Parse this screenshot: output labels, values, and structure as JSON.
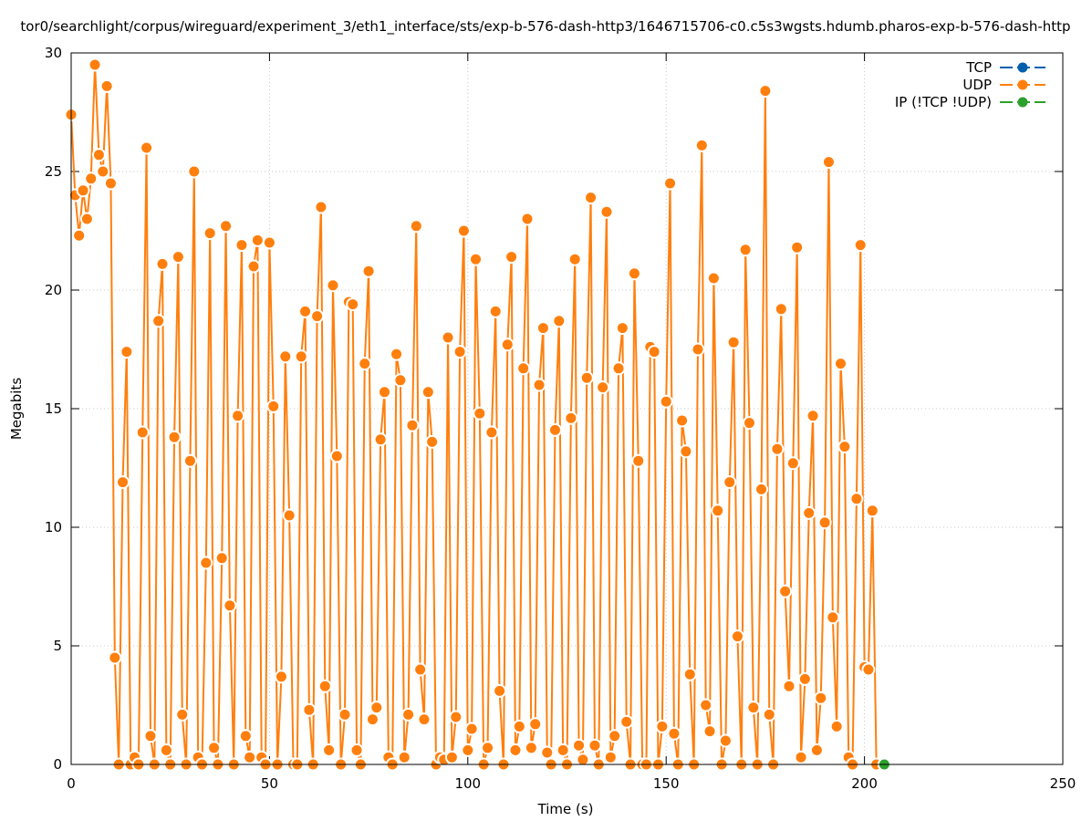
{
  "chart_data": {
    "type": "line",
    "title": "tor0/searchlight/corpus/wireguard/experiment_3/eth1_interface/sts/exp-b-576-dash-http3/1646715706-c0.c5s3wgsts.hdumb.pharos-exp-b-576-dash-http",
    "xlabel": "Time (s)",
    "ylabel": "Megabits",
    "xlim": [
      0,
      250
    ],
    "ylim": [
      0,
      30
    ],
    "xticks": [
      "0",
      "50",
      "100",
      "150",
      "200",
      "250"
    ],
    "yticks": [
      "0",
      "5",
      "10",
      "15",
      "20",
      "25",
      "30"
    ],
    "grid": true,
    "legend_position": "top-right",
    "series": [
      {
        "name": "TCP",
        "color": "#0060ad",
        "points": []
      },
      {
        "name": "UDP",
        "color": "#ff7f0e",
        "points": [
          [
            0,
            27.4
          ],
          [
            1,
            24.0
          ],
          [
            2,
            22.3
          ],
          [
            3,
            24.2
          ],
          [
            4,
            23.0
          ],
          [
            5,
            24.7
          ],
          [
            6,
            29.5
          ],
          [
            7,
            25.7
          ],
          [
            8,
            25.0
          ],
          [
            9,
            28.6
          ],
          [
            10,
            24.5
          ],
          [
            11,
            4.5
          ],
          [
            12,
            0
          ],
          [
            13,
            11.9
          ],
          [
            14,
            17.4
          ],
          [
            15,
            0
          ],
          [
            16,
            0.3
          ],
          [
            17,
            0
          ],
          [
            18,
            14.0
          ],
          [
            19,
            26.0
          ],
          [
            20,
            1.2
          ],
          [
            21,
            0
          ],
          [
            22,
            18.7
          ],
          [
            23,
            21.1
          ],
          [
            24,
            0.6
          ],
          [
            25,
            0
          ],
          [
            26,
            13.8
          ],
          [
            27,
            21.4
          ],
          [
            28,
            2.1
          ],
          [
            29,
            0
          ],
          [
            30,
            12.8
          ],
          [
            31,
            25.0
          ],
          [
            32,
            0.3
          ],
          [
            33,
            0
          ],
          [
            34,
            8.5
          ],
          [
            35,
            22.4
          ],
          [
            36,
            0.7
          ],
          [
            37,
            0
          ],
          [
            38,
            8.7
          ],
          [
            39,
            22.7
          ],
          [
            40,
            6.7
          ],
          [
            41,
            0
          ],
          [
            42,
            14.7
          ],
          [
            43,
            21.9
          ],
          [
            44,
            1.2
          ],
          [
            45,
            0.3
          ],
          [
            46,
            21.0
          ],
          [
            47,
            22.1
          ],
          [
            48,
            0.3
          ],
          [
            49,
            0
          ],
          [
            50,
            22.0
          ],
          [
            51,
            15.1
          ],
          [
            52,
            0
          ],
          [
            53,
            3.7
          ],
          [
            54,
            17.2
          ],
          [
            55,
            10.5
          ],
          [
            56,
            0
          ],
          [
            57,
            0
          ],
          [
            58,
            17.2
          ],
          [
            59,
            19.1
          ],
          [
            60,
            2.3
          ],
          [
            61,
            0
          ],
          [
            62,
            18.9
          ],
          [
            63,
            23.5
          ],
          [
            64,
            3.3
          ],
          [
            65,
            0.6
          ],
          [
            66,
            20.2
          ],
          [
            67,
            13.0
          ],
          [
            68,
            0
          ],
          [
            69,
            2.1
          ],
          [
            70,
            19.5
          ],
          [
            71,
            19.4
          ],
          [
            72,
            0.6
          ],
          [
            73,
            0
          ],
          [
            74,
            16.9
          ],
          [
            75,
            20.8
          ],
          [
            76,
            1.9
          ],
          [
            77,
            2.4
          ],
          [
            78,
            13.7
          ],
          [
            79,
            15.7
          ],
          [
            80,
            0.3
          ],
          [
            81,
            0
          ],
          [
            82,
            17.3
          ],
          [
            83,
            16.2
          ],
          [
            84,
            0.3
          ],
          [
            85,
            2.1
          ],
          [
            86,
            14.3
          ],
          [
            87,
            22.7
          ],
          [
            88,
            4.0
          ],
          [
            89,
            1.9
          ],
          [
            90,
            15.7
          ],
          [
            91,
            13.6
          ],
          [
            92,
            0
          ],
          [
            93,
            0.3
          ],
          [
            94,
            0.2
          ],
          [
            95,
            18.0
          ],
          [
            96,
            0.3
          ],
          [
            97,
            2.0
          ],
          [
            98,
            17.4
          ],
          [
            99,
            22.5
          ],
          [
            100,
            0.6
          ],
          [
            101,
            1.5
          ],
          [
            102,
            21.3
          ],
          [
            103,
            14.8
          ],
          [
            104,
            0
          ],
          [
            105,
            0.7
          ],
          [
            106,
            14.0
          ],
          [
            107,
            19.1
          ],
          [
            108,
            3.1
          ],
          [
            109,
            0
          ],
          [
            110,
            17.7
          ],
          [
            111,
            21.4
          ],
          [
            112,
            0.6
          ],
          [
            113,
            1.6
          ],
          [
            114,
            16.7
          ],
          [
            115,
            23.0
          ],
          [
            116,
            0.7
          ],
          [
            117,
            1.7
          ],
          [
            118,
            16.0
          ],
          [
            119,
            18.4
          ],
          [
            120,
            0.5
          ],
          [
            121,
            0
          ],
          [
            122,
            14.1
          ],
          [
            123,
            18.7
          ],
          [
            124,
            0.6
          ],
          [
            125,
            0
          ],
          [
            126,
            14.6
          ],
          [
            127,
            21.3
          ],
          [
            128,
            0.8
          ],
          [
            129,
            0.2
          ],
          [
            130,
            16.3
          ],
          [
            131,
            23.9
          ],
          [
            132,
            0.8
          ],
          [
            133,
            0
          ],
          [
            134,
            15.9
          ],
          [
            135,
            23.3
          ],
          [
            136,
            0.3
          ],
          [
            137,
            1.2
          ],
          [
            138,
            16.7
          ],
          [
            139,
            18.4
          ],
          [
            140,
            1.8
          ],
          [
            141,
            0
          ],
          [
            142,
            20.7
          ],
          [
            143,
            12.8
          ],
          [
            144,
            0
          ],
          [
            145,
            0
          ],
          [
            146,
            17.6
          ],
          [
            147,
            17.4
          ],
          [
            148,
            0
          ],
          [
            149,
            1.6
          ],
          [
            150,
            15.3
          ],
          [
            151,
            24.5
          ],
          [
            152,
            1.3
          ],
          [
            153,
            0
          ],
          [
            154,
            14.5
          ],
          [
            155,
            13.2
          ],
          [
            156,
            3.8
          ],
          [
            157,
            0
          ],
          [
            158,
            17.5
          ],
          [
            159,
            26.1
          ],
          [
            160,
            2.5
          ],
          [
            161,
            1.4
          ],
          [
            162,
            20.5
          ],
          [
            163,
            10.7
          ],
          [
            164,
            0
          ],
          [
            165,
            1.0
          ],
          [
            166,
            11.9
          ],
          [
            167,
            17.8
          ],
          [
            168,
            5.4
          ],
          [
            169,
            0
          ],
          [
            170,
            21.7
          ],
          [
            171,
            14.4
          ],
          [
            172,
            2.4
          ],
          [
            173,
            0
          ],
          [
            174,
            11.6
          ],
          [
            175,
            28.4
          ],
          [
            176,
            2.1
          ],
          [
            177,
            0
          ],
          [
            178,
            13.3
          ],
          [
            179,
            19.2
          ],
          [
            180,
            7.3
          ],
          [
            181,
            3.3
          ],
          [
            182,
            12.7
          ],
          [
            183,
            21.8
          ],
          [
            184,
            0.3
          ],
          [
            185,
            3.6
          ],
          [
            186,
            10.6
          ],
          [
            187,
            14.7
          ],
          [
            188,
            0.6
          ],
          [
            189,
            2.8
          ],
          [
            190,
            10.2
          ],
          [
            191,
            25.4
          ],
          [
            192,
            6.2
          ],
          [
            193,
            1.6
          ],
          [
            194,
            16.9
          ],
          [
            195,
            13.4
          ],
          [
            196,
            0.3
          ],
          [
            197,
            0
          ],
          [
            198,
            11.2
          ],
          [
            199,
            21.9
          ],
          [
            200,
            4.1
          ],
          [
            201,
            4.0
          ],
          [
            202,
            10.7
          ],
          [
            203,
            0
          ]
        ]
      },
      {
        "name": "IP (!TCP  !UDP)",
        "color": "#2ca02c",
        "points": [
          [
            205,
            0
          ]
        ]
      }
    ]
  }
}
